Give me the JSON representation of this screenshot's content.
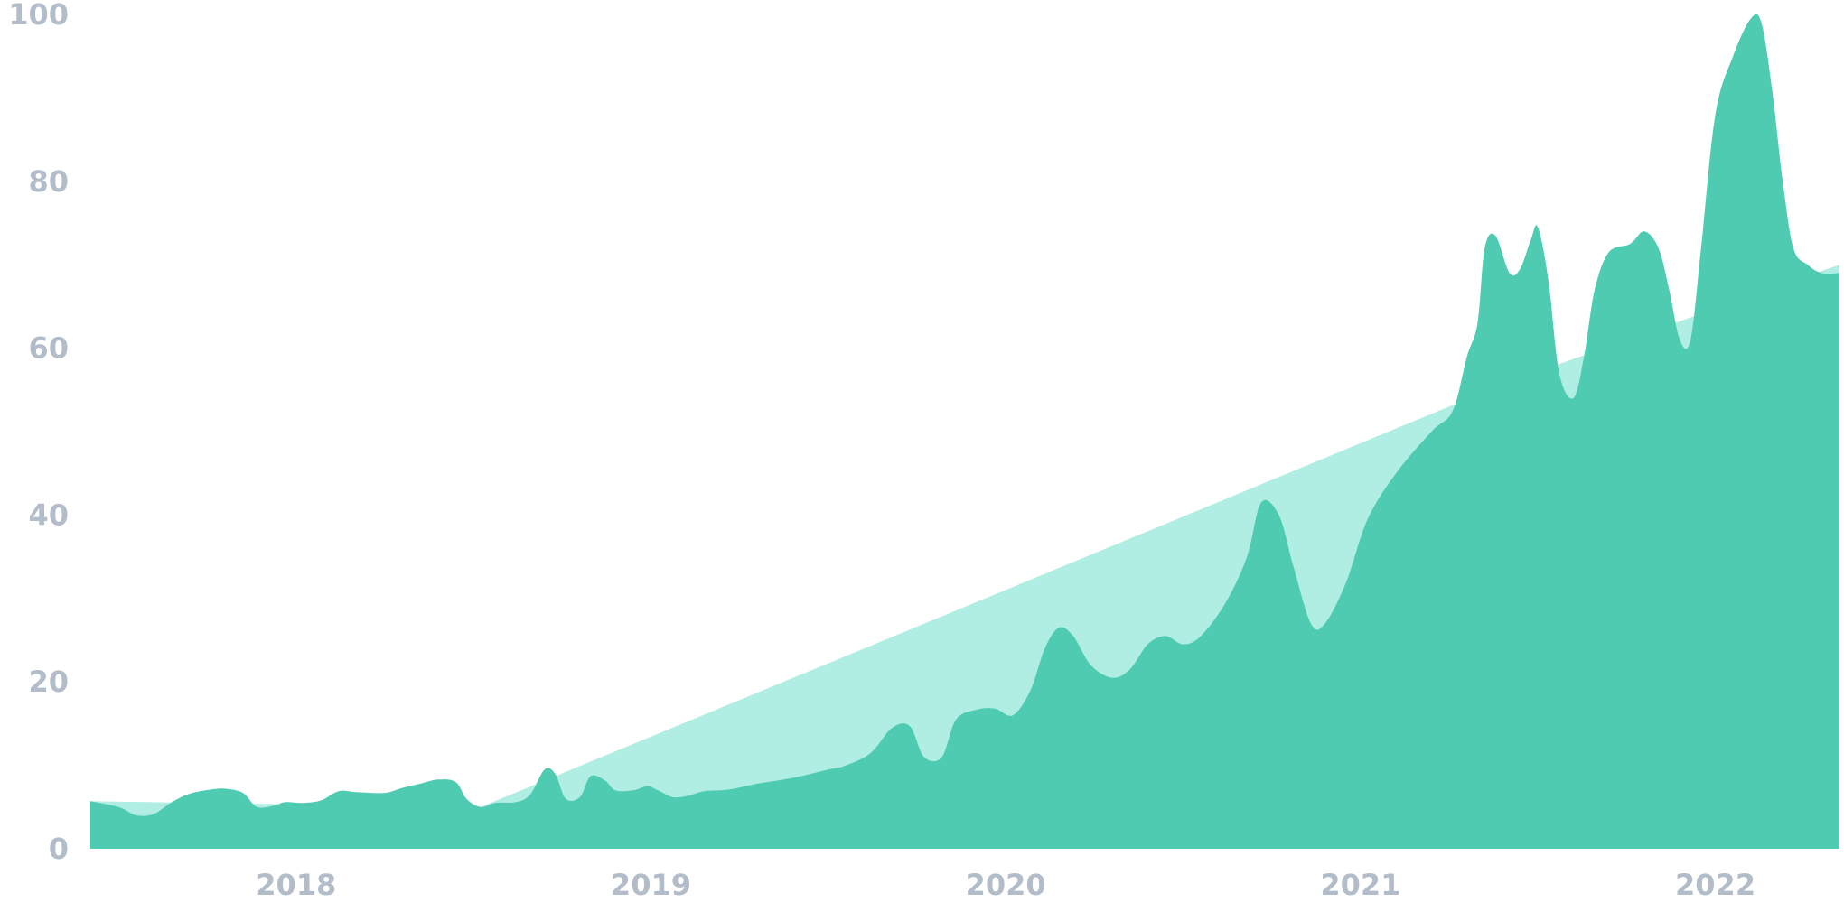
{
  "chart_data": {
    "type": "area",
    "title": "",
    "xlabel": "",
    "ylabel": "",
    "ylim": [
      0,
      100
    ],
    "xlim": [
      2017.42,
      2022.35
    ],
    "grid": false,
    "legend": "none",
    "y_ticks": [
      0,
      20,
      40,
      60,
      80,
      100
    ],
    "x_ticks": [
      2018,
      2019,
      2020,
      2021,
      2022
    ],
    "y_tick_labels": [
      "0",
      "20",
      "40",
      "60",
      "80",
      "100"
    ],
    "x_tick_labels": [
      "2018",
      "2019",
      "2020",
      "2021",
      "2022"
    ],
    "colors": {
      "series_main": "#4fcbb2",
      "series_trend": "#b0ede3",
      "tick_text": "#b3bdc9"
    },
    "series": [
      {
        "values": [
          [
            2017.42,
            5.7
          ],
          [
            2018.52,
            5.0
          ],
          [
            2021.42,
            56.0
          ],
          [
            2022.35,
            70.0
          ]
        ]
      },
      {
        "values": [
          [
            2017.42,
            5.7
          ],
          [
            2017.5,
            5.0
          ],
          [
            2017.55,
            4.0
          ],
          [
            2017.6,
            4.2
          ],
          [
            2017.65,
            5.6
          ],
          [
            2017.7,
            6.6
          ],
          [
            2017.76,
            7.1
          ],
          [
            2017.8,
            7.2
          ],
          [
            2017.85,
            6.7
          ],
          [
            2017.89,
            5.0
          ],
          [
            2017.94,
            5.2
          ],
          [
            2017.97,
            5.6
          ],
          [
            2018.02,
            5.5
          ],
          [
            2018.07,
            5.8
          ],
          [
            2018.12,
            6.9
          ],
          [
            2018.17,
            6.8
          ],
          [
            2018.25,
            6.7
          ],
          [
            2018.3,
            7.3
          ],
          [
            2018.35,
            7.8
          ],
          [
            2018.4,
            8.3
          ],
          [
            2018.45,
            8.0
          ],
          [
            2018.48,
            6.0
          ],
          [
            2018.52,
            5.0
          ],
          [
            2018.56,
            5.5
          ],
          [
            2018.62,
            5.6
          ],
          [
            2018.66,
            6.5
          ],
          [
            2018.7,
            9.5
          ],
          [
            2018.73,
            9.0
          ],
          [
            2018.76,
            6.0
          ],
          [
            2018.8,
            6.2
          ],
          [
            2018.83,
            8.7
          ],
          [
            2018.87,
            8.2
          ],
          [
            2018.9,
            7.0
          ],
          [
            2018.95,
            7.0
          ],
          [
            2018.99,
            7.5
          ],
          [
            2019.02,
            7.0
          ],
          [
            2019.06,
            6.2
          ],
          [
            2019.1,
            6.3
          ],
          [
            2019.15,
            6.9
          ],
          [
            2019.22,
            7.1
          ],
          [
            2019.3,
            7.8
          ],
          [
            2019.4,
            8.5
          ],
          [
            2019.5,
            9.5
          ],
          [
            2019.55,
            10.0
          ],
          [
            2019.62,
            11.5
          ],
          [
            2019.68,
            14.5
          ],
          [
            2019.73,
            14.7
          ],
          [
            2019.77,
            11.0
          ],
          [
            2019.82,
            11.0
          ],
          [
            2019.86,
            15.5
          ],
          [
            2019.92,
            16.7
          ],
          [
            2019.97,
            16.8
          ],
          [
            2020.02,
            16.0
          ],
          [
            2020.07,
            19.0
          ],
          [
            2020.11,
            24.0
          ],
          [
            2020.15,
            26.5
          ],
          [
            2020.19,
            25.5
          ],
          [
            2020.24,
            22.0
          ],
          [
            2020.3,
            20.5
          ],
          [
            2020.35,
            21.5
          ],
          [
            2020.4,
            24.5
          ],
          [
            2020.45,
            25.5
          ],
          [
            2020.5,
            24.5
          ],
          [
            2020.55,
            25.5
          ],
          [
            2020.62,
            29.5
          ],
          [
            2020.68,
            35.0
          ],
          [
            2020.72,
            41.5
          ],
          [
            2020.77,
            40.0
          ],
          [
            2020.81,
            34.0
          ],
          [
            2020.86,
            27.0
          ],
          [
            2020.9,
            27.0
          ],
          [
            2020.96,
            32.0
          ],
          [
            2021.02,
            39.5
          ],
          [
            2021.1,
            45.0
          ],
          [
            2021.2,
            50.0
          ],
          [
            2021.26,
            52.5
          ],
          [
            2021.3,
            59.0
          ],
          [
            2021.33,
            63.0
          ],
          [
            2021.35,
            72.0
          ],
          [
            2021.38,
            73.5
          ],
          [
            2021.42,
            69.0
          ],
          [
            2021.45,
            69.5
          ],
          [
            2021.48,
            73.0
          ],
          [
            2021.5,
            74.5
          ],
          [
            2021.53,
            68.0
          ],
          [
            2021.56,
            57.0
          ],
          [
            2021.6,
            54.0
          ],
          [
            2021.63,
            59.0
          ],
          [
            2021.66,
            67.0
          ],
          [
            2021.7,
            71.5
          ],
          [
            2021.76,
            72.5
          ],
          [
            2021.8,
            74.0
          ],
          [
            2021.84,
            72.0
          ],
          [
            2021.87,
            67.0
          ],
          [
            2021.9,
            61.0
          ],
          [
            2021.93,
            61.0
          ],
          [
            2021.96,
            72.0
          ],
          [
            2022.0,
            88.0
          ],
          [
            2022.05,
            95.0
          ],
          [
            2022.1,
            99.5
          ],
          [
            2022.13,
            99.0
          ],
          [
            2022.16,
            91.0
          ],
          [
            2022.19,
            80.0
          ],
          [
            2022.22,
            72.0
          ],
          [
            2022.26,
            70.0
          ],
          [
            2022.3,
            69.0
          ],
          [
            2022.35,
            69.0
          ]
        ]
      }
    ]
  }
}
